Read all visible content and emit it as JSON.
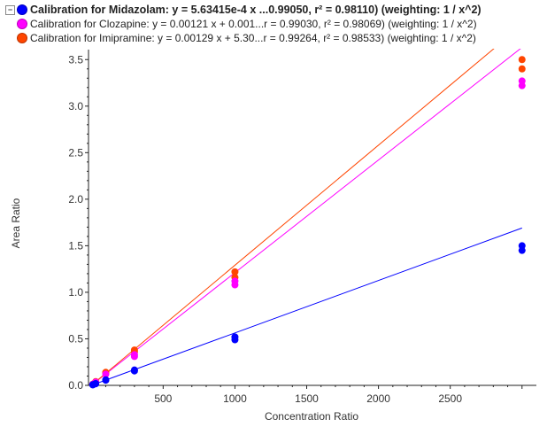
{
  "legend": [
    {
      "label": "Calibration for Midazolam: y = 5.63415e-4 x ...0.99050, r² = 0.98110)  (weighting: 1 / x^2)",
      "color": "#0000ff",
      "bold": true
    },
    {
      "label": "Calibration for Clozapine: y = 0.00121 x + 0.001...r = 0.99030, r² = 0.98069)  (weighting: 1 / x^2)",
      "color": "#ff00ff"
    },
    {
      "label": "Calibration for Imipramine: y = 0.00129 x + 5.30...r = 0.99264, r² = 0.98533)  (weighting: 1 / x^2)",
      "color": "#ff4500"
    }
  ],
  "collapse_symbol": "−",
  "chart_data": {
    "type": "scatter",
    "xlabel": "Concentration Ratio",
    "ylabel": "Area Ratio",
    "xlim": [
      -20,
      3100
    ],
    "ylim": [
      0,
      3.55
    ],
    "xticks": [
      500,
      1000,
      1500,
      2000,
      2500
    ],
    "xtick_labels": [
      "500",
      "1000",
      "1500",
      "2000",
      "2500"
    ],
    "yticks": [
      0,
      0.5,
      1,
      1.5,
      2,
      2.5,
      3,
      3.5
    ],
    "ytick_labels": [
      "0.0",
      "0.5",
      "1.0",
      "1.5",
      "2.0",
      "2.5",
      "3.0",
      "3.5"
    ],
    "grid": false,
    "legend_placement": "top",
    "series": [
      {
        "name": "Midazolam",
        "color": "#0000ff",
        "slope": 0.000563415,
        "intercept": 0.0,
        "points": [
          [
            10,
            0.006
          ],
          [
            10,
            0.007
          ],
          [
            30,
            0.017
          ],
          [
            30,
            0.019
          ],
          [
            100,
            0.055
          ],
          [
            100,
            0.06
          ],
          [
            300,
            0.155
          ],
          [
            300,
            0.165
          ],
          [
            1000,
            0.49
          ],
          [
            1000,
            0.52
          ],
          [
            3000,
            1.45
          ],
          [
            3000,
            1.5
          ]
        ]
      },
      {
        "name": "Clozapine",
        "color": "#ff00ff",
        "slope": 0.00121,
        "intercept": 0.001,
        "points": [
          [
            10,
            0.012
          ],
          [
            30,
            0.035
          ],
          [
            100,
            0.12
          ],
          [
            300,
            0.31
          ],
          [
            300,
            0.33
          ],
          [
            1000,
            1.08
          ],
          [
            1000,
            1.12
          ],
          [
            3000,
            3.22
          ],
          [
            3000,
            3.27
          ]
        ]
      },
      {
        "name": "Imipramine",
        "color": "#ff4500",
        "slope": 0.00129,
        "intercept": 0.0005,
        "points": [
          [
            10,
            0.013
          ],
          [
            30,
            0.04
          ],
          [
            100,
            0.13
          ],
          [
            100,
            0.14
          ],
          [
            300,
            0.36
          ],
          [
            300,
            0.38
          ],
          [
            1000,
            1.16
          ],
          [
            1000,
            1.22
          ],
          [
            3000,
            3.4
          ],
          [
            3000,
            3.5
          ]
        ]
      }
    ]
  }
}
